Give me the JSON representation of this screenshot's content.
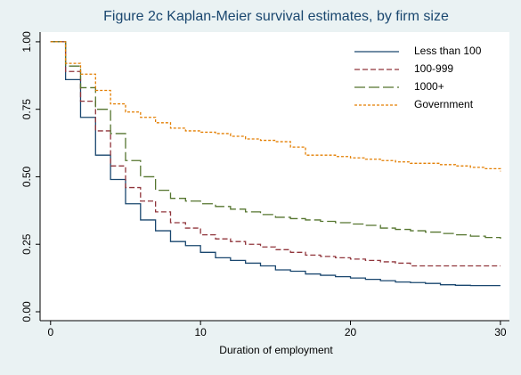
{
  "chart_data": {
    "type": "step-line",
    "title": "Figure 2c Kaplan-Meier survival estimates, by firm size",
    "x_label": "Duration of employment",
    "x": [
      0,
      1,
      2,
      3,
      4,
      5,
      6,
      7,
      8,
      9,
      10,
      11,
      12,
      13,
      14,
      15,
      16,
      17,
      18,
      19,
      20,
      21,
      22,
      23,
      24,
      25,
      26,
      27,
      28,
      29,
      30
    ],
    "series": [
      {
        "name": "Less than 100",
        "color": "#1a476f",
        "dash": "none",
        "values": [
          1.0,
          0.86,
          0.72,
          0.58,
          0.49,
          0.4,
          0.34,
          0.3,
          0.26,
          0.245,
          0.22,
          0.2,
          0.19,
          0.18,
          0.17,
          0.155,
          0.15,
          0.14,
          0.135,
          0.13,
          0.125,
          0.12,
          0.115,
          0.11,
          0.108,
          0.105,
          0.1,
          0.098,
          0.097,
          0.097,
          0.097
        ]
      },
      {
        "name": "100-999",
        "color": "#90353b",
        "dash": "6,3",
        "values": [
          1.0,
          0.89,
          0.78,
          0.67,
          0.54,
          0.46,
          0.41,
          0.37,
          0.33,
          0.31,
          0.285,
          0.27,
          0.26,
          0.25,
          0.24,
          0.23,
          0.22,
          0.21,
          0.205,
          0.2,
          0.195,
          0.19,
          0.185,
          0.18,
          0.17,
          0.17,
          0.17,
          0.17,
          0.17,
          0.17,
          0.17
        ]
      },
      {
        "name": "1000+",
        "color": "#55752f",
        "dash": "12,4",
        "values": [
          1.0,
          0.91,
          0.83,
          0.75,
          0.66,
          0.56,
          0.5,
          0.45,
          0.42,
          0.41,
          0.4,
          0.39,
          0.38,
          0.37,
          0.36,
          0.35,
          0.345,
          0.34,
          0.335,
          0.33,
          0.325,
          0.32,
          0.31,
          0.305,
          0.3,
          0.295,
          0.29,
          0.285,
          0.28,
          0.275,
          0.27
        ]
      },
      {
        "name": "Government",
        "color": "#e37e00",
        "dash": "3,2",
        "values": [
          1.0,
          0.92,
          0.88,
          0.82,
          0.77,
          0.74,
          0.72,
          0.7,
          0.68,
          0.67,
          0.665,
          0.66,
          0.65,
          0.64,
          0.635,
          0.63,
          0.61,
          0.58,
          0.58,
          0.575,
          0.57,
          0.565,
          0.56,
          0.555,
          0.55,
          0.55,
          0.545,
          0.54,
          0.535,
          0.53,
          0.52
        ]
      }
    ],
    "xlim": [
      -0.7,
      30.6
    ],
    "xticks": [
      0,
      10,
      20,
      30
    ],
    "ylim": [
      -0.033,
      1.036
    ],
    "yticks": [
      {
        "value": 0,
        "label": "0.00"
      },
      {
        "value": 0.25,
        "label": "0.25"
      },
      {
        "value": 0.5,
        "label": "0.50"
      },
      {
        "value": 0.75,
        "label": "0.75"
      },
      {
        "value": 1,
        "label": "1.00"
      }
    ],
    "legend": "top-right"
  }
}
